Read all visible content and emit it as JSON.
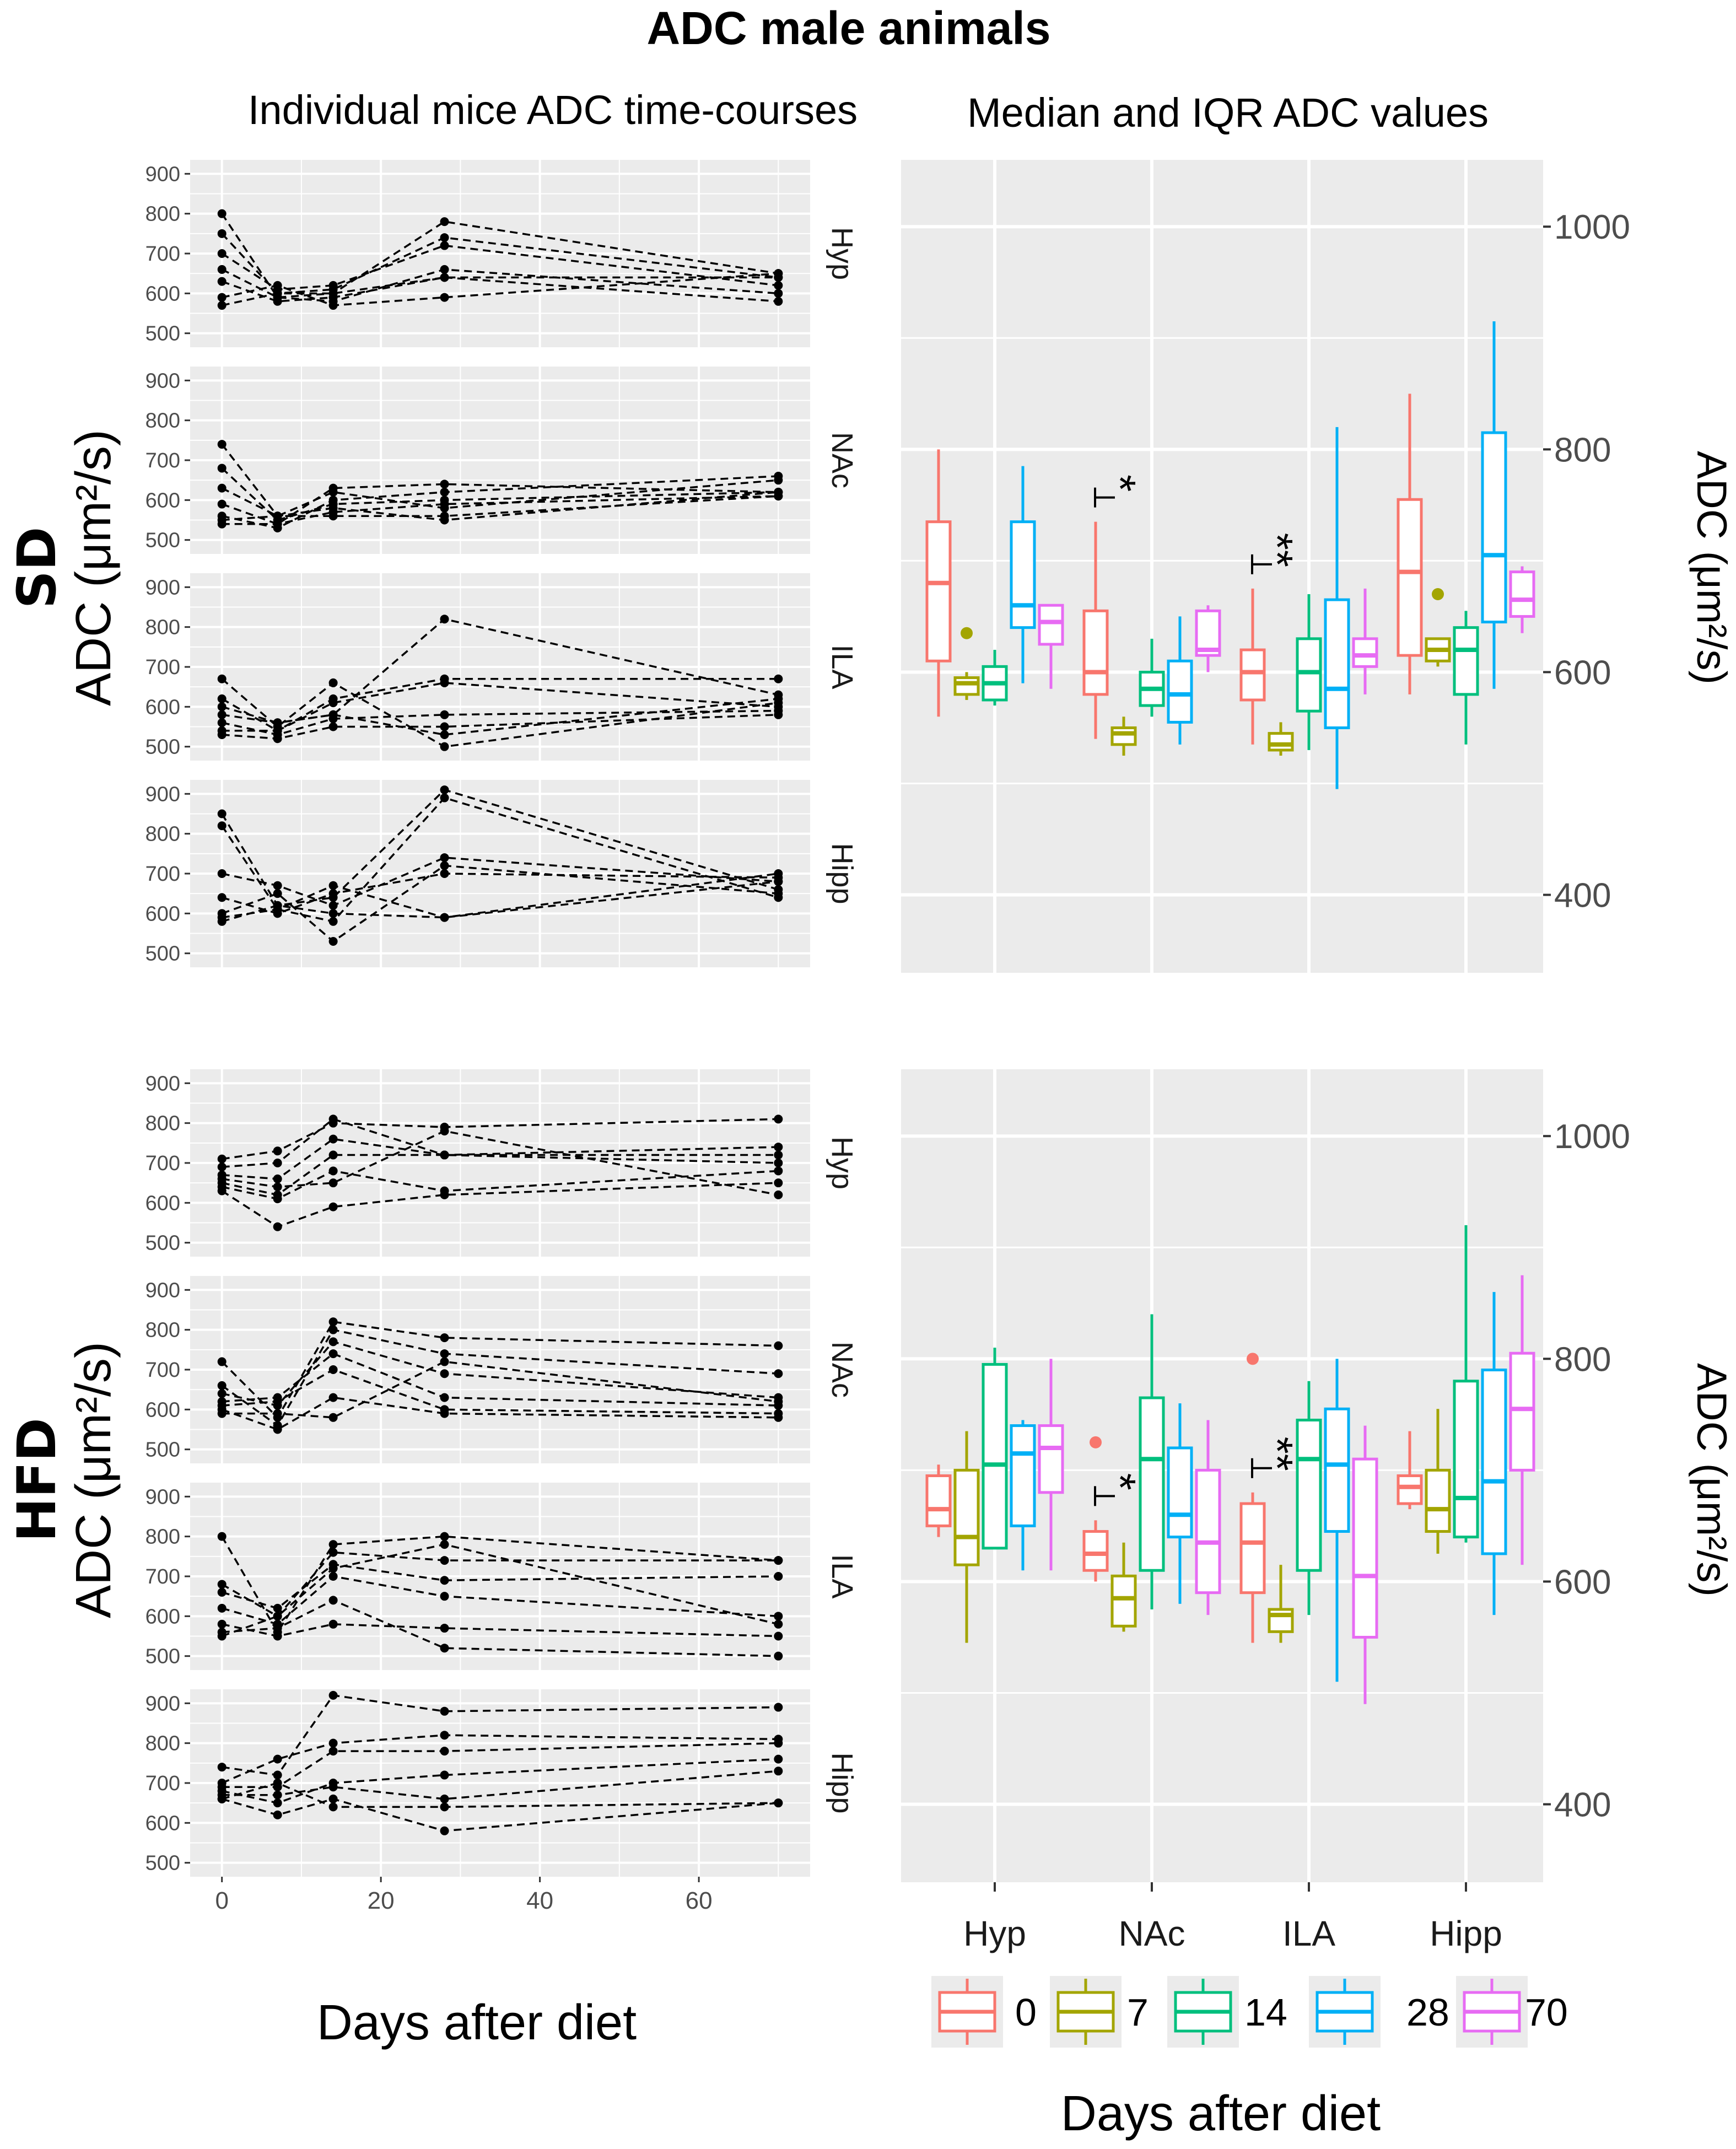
{
  "title": "ADC male animals",
  "left_subtitle": "Individual mice ADC time-courses",
  "right_subtitle": "Median and IQR ADC values",
  "left_ylabel": "ADC (μm²/s)",
  "right_ylabel": "ADC (μm²/s)",
  "left_xlabel": "Days after diet",
  "right_xlabel": "Days after diet",
  "colors": {
    "panel_bg": "#ebebeb",
    "grid": "#ffffff",
    "line": "#000000",
    "d0": "#f8766d",
    "d7": "#a3a500",
    "d14": "#00bf7d",
    "d28": "#00b0f6",
    "d70": "#e76bf3"
  },
  "chart_data": [
    {
      "type": "line",
      "group": "SD",
      "title": "Individual mice ADC time-courses",
      "xlabel": "Days after diet",
      "ylabel": "ADC (μm²/s)",
      "x": [
        0,
        7,
        14,
        28,
        70
      ],
      "x_ticks": [
        "0",
        "20",
        "40",
        "60"
      ],
      "y_ticks": [
        "500",
        "600",
        "700",
        "800",
        "900"
      ],
      "panels": [
        {
          "region": "Hyp",
          "series": [
            [
              800,
              590,
              600,
              780,
              650
            ],
            [
              750,
              600,
              610,
              740,
              640
            ],
            [
              700,
              610,
              620,
              720,
              620
            ],
            [
              660,
              590,
              580,
              660,
              600
            ],
            [
              630,
              580,
              590,
              640,
              580
            ],
            [
              590,
              620,
              570,
              590,
              650
            ],
            [
              570,
              600,
              600,
              640,
              640
            ]
          ]
        },
        {
          "region": "NAc",
          "series": [
            [
              740,
              560,
              580,
              550,
              620
            ],
            [
              680,
              550,
              590,
              600,
              620
            ],
            [
              630,
              560,
              620,
              580,
              650
            ],
            [
              590,
              540,
              630,
              640,
              620
            ],
            [
              560,
              530,
              600,
              620,
              660
            ],
            [
              550,
              560,
              560,
              560,
              610
            ],
            [
              540,
              540,
              570,
              590,
              610
            ]
          ]
        },
        {
          "region": "ILA",
          "series": [
            [
              670,
              550,
              660,
              500,
              610
            ],
            [
              620,
              540,
              610,
              660,
              600
            ],
            [
              580,
              560,
              580,
              820,
              630
            ],
            [
              560,
              530,
              570,
              580,
              590
            ],
            [
              540,
              540,
              620,
              670,
              670
            ],
            [
              530,
              520,
              550,
              550,
              580
            ],
            [
              600,
              560,
              580,
              530,
              620
            ]
          ]
        },
        {
          "region": "Hipp",
          "series": [
            [
              850,
              620,
              640,
              910,
              660
            ],
            [
              820,
              610,
              580,
              890,
              640
            ],
            [
              700,
              670,
              620,
              740,
              680
            ],
            [
              640,
              600,
              650,
              700,
              690
            ],
            [
              600,
              650,
              530,
              720,
              650
            ],
            [
              590,
              610,
              670,
              590,
              700
            ],
            [
              580,
              620,
              600,
              590,
              680
            ]
          ]
        }
      ]
    },
    {
      "type": "line",
      "group": "HFD",
      "title": "",
      "xlabel": "Days after diet",
      "ylabel": "ADC (μm²/s)",
      "x": [
        0,
        7,
        14,
        28,
        70
      ],
      "x_ticks": [
        "0",
        "20",
        "40",
        "60"
      ],
      "y_ticks": [
        "500",
        "600",
        "700",
        "800",
        "900"
      ],
      "panels": [
        {
          "region": "Hyp",
          "series": [
            [
              710,
              730,
              800,
              790,
              810
            ],
            [
              690,
              700,
              810,
              720,
              740
            ],
            [
              670,
              660,
              760,
              720,
              720
            ],
            [
              650,
              620,
              720,
              720,
              700
            ],
            [
              640,
              610,
              680,
              630,
              680
            ],
            [
              630,
              540,
              590,
              620,
              650
            ],
            [
              660,
              640,
              650,
              780,
              620
            ]
          ]
        },
        {
          "region": "NAc",
          "series": [
            [
              720,
              580,
              820,
              780,
              760
            ],
            [
              660,
              560,
              800,
              740,
              690
            ],
            [
              640,
              610,
              770,
              690,
              630
            ],
            [
              620,
              630,
              740,
              630,
              610
            ],
            [
              610,
              620,
              700,
              600,
              590
            ],
            [
              600,
              550,
              630,
              590,
              580
            ],
            [
              590,
              590,
              580,
              720,
              620
            ]
          ]
        },
        {
          "region": "ILA",
          "series": [
            [
              800,
              560,
              780,
              800,
              740
            ],
            [
              680,
              600,
              760,
              740,
              740
            ],
            [
              660,
              620,
              730,
              690,
              700
            ],
            [
              620,
              580,
              700,
              650,
              600
            ],
            [
              580,
              550,
              580,
              570,
              550
            ],
            [
              560,
              570,
              640,
              520,
              500
            ],
            [
              550,
              600,
              720,
              780,
              580
            ]
          ]
        },
        {
          "region": "Hipp",
          "series": [
            [
              740,
              720,
              920,
              880,
              890
            ],
            [
              700,
              760,
              800,
              820,
              810
            ],
            [
              690,
              690,
              780,
              780,
              800
            ],
            [
              680,
              650,
              700,
              720,
              760
            ],
            [
              670,
              670,
              690,
              660,
              730
            ],
            [
              660,
              620,
              660,
              580,
              650
            ],
            [
              660,
              700,
              640,
              640,
              650
            ]
          ]
        }
      ]
    },
    {
      "type": "box",
      "group": "SD",
      "title": "Median and IQR ADC values",
      "xlabel": "Days after diet",
      "ylabel": "ADC (μm²/s)",
      "categories": [
        "Hyp",
        "NAc",
        "ILA",
        "Hipp"
      ],
      "days": [
        "0",
        "7",
        "14",
        "28",
        "70"
      ],
      "y_ticks": [
        "400",
        "600",
        "800",
        "1000"
      ],
      "ylim": [
        330,
        1060
      ],
      "boxes": {
        "Hyp": [
          [
            560,
            610,
            680,
            735,
            800
          ],
          [
            575,
            580,
            590,
            595,
            600
          ],
          [
            570,
            575,
            590,
            605,
            620
          ],
          [
            590,
            640,
            660,
            735,
            785
          ],
          [
            585,
            625,
            645,
            660,
            660
          ]
        ],
        "NAc": [
          [
            540,
            580,
            600,
            655,
            735
          ],
          [
            525,
            535,
            545,
            550,
            560
          ],
          [
            560,
            570,
            585,
            600,
            630
          ],
          [
            535,
            555,
            580,
            610,
            650
          ],
          [
            600,
            615,
            620,
            655,
            660
          ]
        ],
        "ILA": [
          [
            535,
            575,
            600,
            620,
            675
          ],
          [
            525,
            530,
            535,
            545,
            555
          ],
          [
            530,
            565,
            600,
            630,
            670
          ],
          [
            495,
            550,
            585,
            665,
            820
          ],
          [
            580,
            605,
            615,
            630,
            675
          ]
        ],
        "Hipp": [
          [
            580,
            615,
            690,
            755,
            850
          ],
          [
            605,
            610,
            620,
            630,
            625
          ],
          [
            535,
            580,
            620,
            640,
            655
          ],
          [
            585,
            645,
            705,
            815,
            915
          ],
          [
            635,
            650,
            665,
            690,
            695
          ]
        ]
      },
      "outliers": [
        {
          "cat": "Hyp",
          "day": "7",
          "value": 635
        },
        {
          "cat": "Hipp",
          "day": "7",
          "value": 670
        }
      ],
      "significance": [
        {
          "cat": "NAc",
          "label": "*"
        },
        {
          "cat": "ILA",
          "label": "**"
        }
      ]
    },
    {
      "type": "box",
      "group": "HFD",
      "title": "",
      "xlabel": "Days after diet",
      "ylabel": "ADC (μm²/s)",
      "categories": [
        "Hyp",
        "NAc",
        "ILA",
        "Hipp"
      ],
      "days": [
        "0",
        "7",
        "14",
        "28",
        "70"
      ],
      "y_ticks": [
        "400",
        "600",
        "800",
        "1000"
      ],
      "ylim": [
        330,
        1060
      ],
      "boxes": {
        "Hyp": [
          [
            640,
            650,
            665,
            695,
            705
          ],
          [
            545,
            615,
            640,
            700,
            735
          ],
          [
            630,
            630,
            705,
            795,
            810
          ],
          [
            610,
            650,
            715,
            740,
            745
          ],
          [
            610,
            680,
            720,
            740,
            800
          ]
        ],
        "NAc": [
          [
            600,
            610,
            625,
            645,
            655
          ],
          [
            555,
            560,
            585,
            605,
            635
          ],
          [
            575,
            610,
            710,
            765,
            840
          ],
          [
            580,
            640,
            660,
            720,
            760
          ],
          [
            570,
            590,
            635,
            700,
            745
          ]
        ],
        "ILA": [
          [
            545,
            590,
            635,
            670,
            680
          ],
          [
            545,
            555,
            570,
            575,
            615
          ],
          [
            570,
            610,
            710,
            745,
            780
          ],
          [
            510,
            645,
            705,
            755,
            800
          ],
          [
            490,
            550,
            605,
            710,
            740
          ]
        ],
        "Hipp": [
          [
            665,
            670,
            685,
            695,
            735
          ],
          [
            625,
            645,
            665,
            700,
            755
          ],
          [
            635,
            640,
            675,
            780,
            920
          ],
          [
            570,
            625,
            690,
            790,
            860
          ],
          [
            615,
            700,
            755,
            805,
            875
          ]
        ]
      },
      "outliers": [
        {
          "cat": "NAc",
          "day": "0",
          "value": 725
        },
        {
          "cat": "ILA",
          "day": "0",
          "value": 800
        }
      ],
      "significance": [
        {
          "cat": "NAc",
          "label": "*"
        },
        {
          "cat": "ILA",
          "label": "**"
        }
      ]
    }
  ],
  "legend": {
    "labels": [
      "0",
      "7",
      "14",
      "28",
      "70"
    ]
  },
  "groups": [
    "SD",
    "HFD"
  ]
}
